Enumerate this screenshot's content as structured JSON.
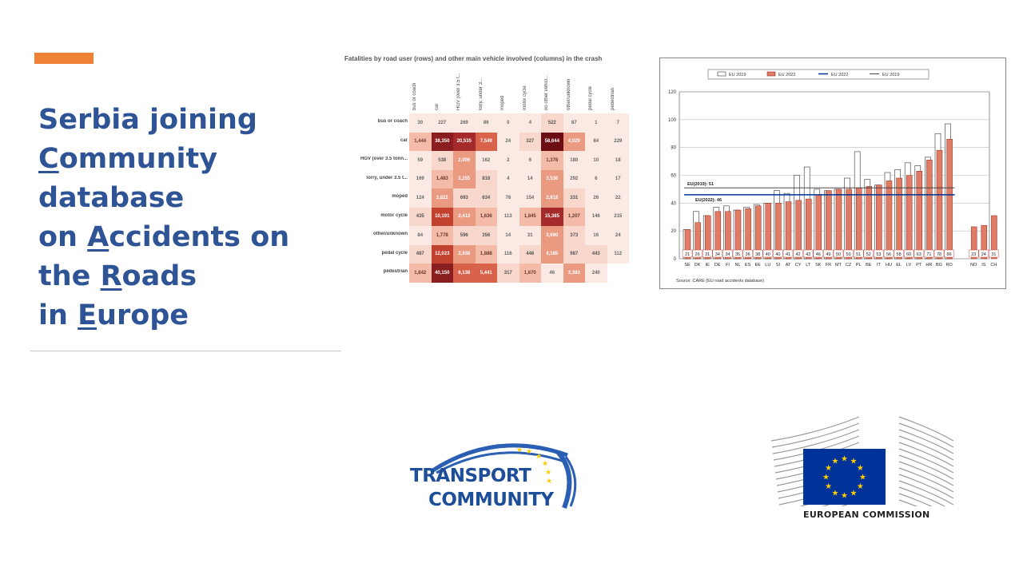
{
  "title": {
    "line1": "Serbia joining",
    "line2_u": "C",
    "line2_rest": "ommunity",
    "line3": "database",
    "line4_pre": "on ",
    "line4_u": "A",
    "line4_rest": "ccidents on",
    "line5_pre": "the ",
    "line5_u": "R",
    "line5_rest": "oads",
    "line6_pre": "in ",
    "line6_u": "E",
    "line6_rest": "urope"
  },
  "colors": {
    "title": "#2f5496",
    "accent": "#ee8133",
    "bar": "#e07b65",
    "bar_edge": "#8b2b1c",
    "eu_blue": "#003399",
    "eu_star": "#ffcc00"
  },
  "heatmap": {
    "title": "Fatalities by road user (rows) and other main vehicle involved (columns) in the crash",
    "columns": [
      "bus or coach",
      "car",
      "HGV (over 3.5 t...",
      "lorry, under 3...",
      "moped",
      "motor cycle",
      "no other vehicl...",
      "other/unknown",
      "pedal cycle",
      "pedestrian"
    ],
    "rows": [
      {
        "label": "bus or coach",
        "values": [
          "30",
          "227",
          "269",
          "86",
          "0",
          "4",
          "522",
          "87",
          "1",
          "7"
        ]
      },
      {
        "label": "car",
        "values": [
          "1,444",
          "38,350",
          "20,535",
          "7,549",
          "24",
          "327",
          "58,644",
          "4,029",
          "84",
          "229"
        ]
      },
      {
        "label": "HGV (over 3.5 tonn...",
        "values": [
          "59",
          "538",
          "2,006",
          "162",
          "2",
          "6",
          "1,378",
          "180",
          "10",
          "18"
        ]
      },
      {
        "label": "lorry, under 3.5 t...",
        "values": [
          "169",
          "1,483",
          "2,255",
          "818",
          "4",
          "14",
          "3,536",
          "292",
          "6",
          "17"
        ]
      },
      {
        "label": "moped",
        "values": [
          "124",
          "3,822",
          "693",
          "634",
          "78",
          "154",
          "2,918",
          "331",
          "26",
          "22"
        ]
      },
      {
        "label": "motor cycle",
        "values": [
          "435",
          "10,191",
          "2,413",
          "1,636",
          "113",
          "1,845",
          "15,385",
          "1,207",
          "146",
          "215"
        ]
      },
      {
        "label": "other/unknown",
        "values": [
          "84",
          "1,778",
          "596",
          "356",
          "14",
          "31",
          "3,690",
          "373",
          "16",
          "24"
        ]
      },
      {
        "label": "pedal cycle",
        "values": [
          "487",
          "12,023",
          "2,938",
          "1,888",
          "116",
          "446",
          "4,185",
          "987",
          "443",
          "112"
        ]
      },
      {
        "label": "pedestrian",
        "values": [
          "1,842",
          "40,150",
          "6,138",
          "5,441",
          "317",
          "1,670",
          "46",
          "3,383",
          "240",
          ""
        ]
      }
    ]
  },
  "chart_data": {
    "type": "bar",
    "legend": [
      "EU 2019",
      "EU 2022",
      "EU 2022",
      "EU 2019"
    ],
    "legend_position": "top",
    "categories": [
      "SE",
      "DK",
      "IE",
      "DE",
      "FI",
      "NL",
      "ES",
      "EE",
      "LU",
      "SI",
      "AT",
      "CY",
      "LT",
      "SK",
      "FR",
      "MT",
      "CZ",
      "PL",
      "BE",
      "IT",
      "HU",
      "EL",
      "LV",
      "PT",
      "HR",
      "BG",
      "RO",
      "NO",
      "IS",
      "CH"
    ],
    "series": [
      {
        "name": "EU 2022",
        "values": [
          21,
          26,
          31,
          34,
          34,
          35,
          36,
          38,
          40,
          40,
          41,
          42,
          43,
          46,
          49,
          50,
          50,
          51,
          52,
          53,
          56,
          58,
          60,
          63,
          71,
          78,
          86,
          23,
          24,
          31
        ]
      },
      {
        "name": "EU 2019",
        "values": [
          21,
          34,
          31,
          37,
          38,
          35,
          37,
          39,
          40,
          49,
          47,
          60,
          66,
          50,
          49,
          50,
          58,
          77,
          57,
          53,
          62,
          64,
          69,
          67,
          73,
          90,
          97,
          null,
          null,
          null
        ]
      }
    ],
    "reference_lines": [
      {
        "label": "EU(2019): 51",
        "value": 51
      },
      {
        "label": "EU(2022): 46",
        "value": 46
      }
    ],
    "yticks": [
      "0",
      "20",
      "40",
      "60",
      "80",
      "100",
      "120"
    ],
    "ylim": [
      0,
      120
    ],
    "grid": true,
    "source": "Source: CARE (EU road accidents database)"
  },
  "logos": {
    "tc_line1": "TRANSPORT",
    "tc_line2": "COMMUNITY",
    "ec_label": "EUROPEAN COMMISSION"
  }
}
